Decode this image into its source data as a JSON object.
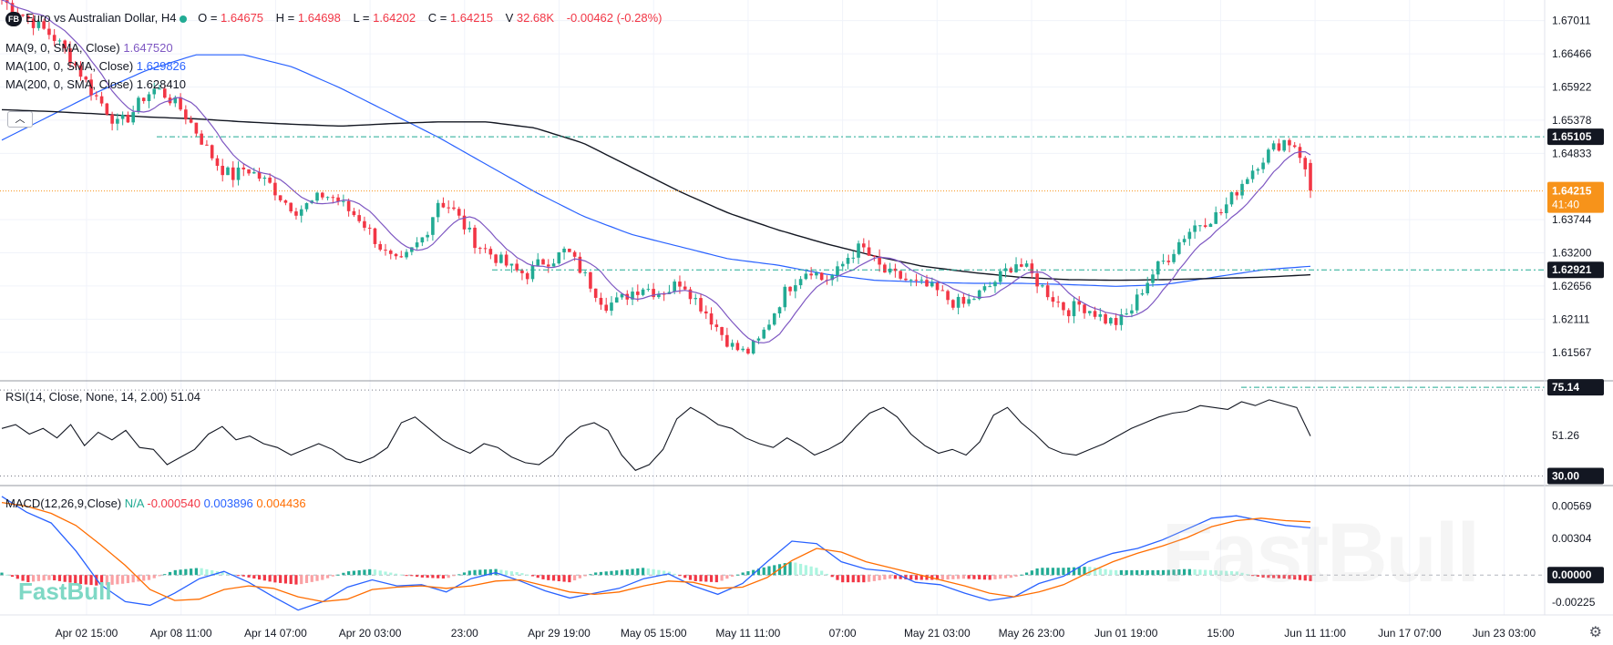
{
  "header": {
    "logo_text": "FB",
    "symbol_title": "Euro vs Australian Dollar, H4",
    "o_label": "O =",
    "o_value": "1.64675",
    "h_label": "H =",
    "h_value": "1.64698",
    "l_label": "L =",
    "l_value": "1.64202",
    "c_label": "C =",
    "c_value": "1.64215",
    "v_label": "V",
    "v_value": "32.68K",
    "change": "-0.00462 (-0.28%)"
  },
  "indicators": {
    "ma9": {
      "label": "MA(9, 0, SMA, Close)",
      "value": "1.647520",
      "color": "#7e57c2"
    },
    "ma100": {
      "label": "MA(100, 0, SMA, Close)",
      "value": "1.629826",
      "color": "#2962ff"
    },
    "ma200": {
      "label": "MA(200, 0, SMA, Close)",
      "value": "1.628410",
      "color": "#131722"
    },
    "rsi": {
      "label": "RSI(14, Close, None, 14, 2.00)",
      "value": "51.04"
    },
    "macd": {
      "label": "MACD(12,26,9,Close)",
      "na": "N/A",
      "hist": "-0.000540",
      "macd": "0.003896",
      "signal": "0.004436"
    }
  },
  "price_axis": {
    "ticks": [
      "1.67011",
      "1.66466",
      "1.65922",
      "1.65378",
      "1.64833",
      "1.63744",
      "1.63200",
      "1.62656",
      "1.62111",
      "1.61567"
    ],
    "badge_high": "1.65105",
    "badge_last": "1.64215",
    "badge_timer": "41:40",
    "badge_low": "1.62921"
  },
  "rsi_axis": {
    "ticks": [
      "51.26"
    ],
    "badge_top": "75.14",
    "badge_bottom": "30.00"
  },
  "macd_axis": {
    "ticks": [
      "0.00569",
      "0.00304",
      "-0.00225"
    ],
    "badge_zero": "0.00000"
  },
  "time_axis": [
    "Apr 02 15:00",
    "Apr 08 11:00",
    "Apr 14 07:00",
    "Apr 20 03:00",
    "23:00",
    "Apr 29 19:00",
    "May 05 15:00",
    "May 11 11:00",
    "07:00",
    "May 21 03:00",
    "May 26 23:00",
    "Jun 01 19:00",
    "15:00",
    "Jun 11 11:00",
    "Jun 17 07:00",
    "Jun 23 03:00"
  ],
  "watermark": {
    "small": "FastBull",
    "big": "FastBull"
  },
  "colors": {
    "up": "#22ab94",
    "down": "#f23645",
    "accent": "#f7931a",
    "ma100": "#2962ff",
    "ma9": "#7e57c2",
    "ma200": "#131722",
    "macd_line": "#2962ff",
    "signal_line": "#ff6d00"
  },
  "chart_data": [
    {
      "type": "candlestick",
      "title": "Euro vs Australian Dollar, H4",
      "ylim": [
        1.611,
        1.6735
      ],
      "y_ticks": [
        1.67011,
        1.66466,
        1.65922,
        1.65378,
        1.64833,
        1.63744,
        1.632,
        1.62656,
        1.62111,
        1.61567
      ],
      "x_ticks": [
        "Apr 02 15:00",
        "Apr 08 11:00",
        "Apr 14 07:00",
        "Apr 20 03:00",
        "23:00",
        "Apr 29 19:00",
        "May 05 15:00",
        "May 11 11:00",
        "07:00",
        "May 21 03:00",
        "May 26 23:00",
        "Jun 01 19:00",
        "15:00",
        "Jun 11 11:00",
        "Jun 17 07:00",
        "Jun 23 03:00"
      ],
      "close_path": [
        1.6735,
        1.672,
        1.6705,
        1.669,
        1.6675,
        1.665,
        1.662,
        1.6585,
        1.656,
        1.653,
        1.6545,
        1.6575,
        1.659,
        1.6575,
        1.6555,
        1.6525,
        1.649,
        1.646,
        1.6445,
        1.646,
        1.6445,
        1.643,
        1.6405,
        1.639,
        1.64,
        1.6415,
        1.641,
        1.639,
        1.6375,
        1.6345,
        1.6315,
        1.63,
        1.6325,
        1.635,
        1.6405,
        1.6395,
        1.6365,
        1.6335,
        1.632,
        1.6305,
        1.629,
        1.6285,
        1.6305,
        1.631,
        1.6325,
        1.6295,
        1.6265,
        1.6235,
        1.624,
        1.6255,
        1.6265,
        1.6255,
        1.626,
        1.6275,
        1.6245,
        1.622,
        1.619,
        1.6165,
        1.6155,
        1.6175,
        1.6215,
        1.6255,
        1.628,
        1.6295,
        1.6275,
        1.6285,
        1.6315,
        1.633,
        1.6305,
        1.6285,
        1.628,
        1.627,
        1.6265,
        1.6255,
        1.624,
        1.6235,
        1.625,
        1.6265,
        1.6285,
        1.6305,
        1.629,
        1.6265,
        1.6245,
        1.6225,
        1.6235,
        1.6225,
        1.621,
        1.6205,
        1.6225,
        1.6265,
        1.6295,
        1.6315,
        1.6345,
        1.6365,
        1.6375,
        1.6385,
        1.6415,
        1.6445,
        1.647,
        1.649,
        1.6505,
        1.6495,
        1.6422
      ],
      "series": [
        {
          "name": "MA(9, 0, SMA, Close)",
          "last": 1.64752
        },
        {
          "name": "MA(100, 0, SMA, Close)",
          "last": 1.629826
        },
        {
          "name": "MA(200, 0, SMA, Close)",
          "last": 1.62841
        }
      ],
      "levels": [
        1.65105,
        1.62921,
        1.64215
      ]
    },
    {
      "type": "line",
      "title": "RSI(14, Close, None, 14, 2.00)",
      "ylim": [
        25,
        80
      ],
      "bands": [
        30,
        75.14
      ],
      "values": [
        55,
        57,
        52,
        55,
        50,
        57,
        46,
        53,
        49,
        54,
        45,
        44,
        36,
        40,
        44,
        52,
        56,
        49,
        51,
        47,
        45,
        41,
        44,
        47,
        44,
        39,
        37,
        40,
        45,
        58,
        61,
        55,
        49,
        45,
        42,
        47,
        45,
        40,
        37,
        36,
        41,
        50,
        56,
        58,
        54,
        41,
        33,
        36,
        44,
        60,
        66,
        62,
        57,
        55,
        50,
        47,
        45,
        50,
        46,
        41,
        44,
        48,
        56,
        63,
        66,
        61,
        52,
        46,
        42,
        44,
        41,
        48,
        62,
        66,
        58,
        52,
        45,
        42,
        41,
        44,
        47,
        51,
        55,
        58,
        61,
        63,
        64,
        67,
        66,
        65,
        69,
        67,
        70,
        68,
        66,
        51
      ],
      "last": 51.04
    },
    {
      "type": "bar",
      "title": "MACD(12,26,9,Close)",
      "ylim": [
        -0.0033,
        0.0074
      ],
      "y_ticks": [
        0.00569,
        0.00304,
        0,
        -0.00225
      ],
      "series": [
        {
          "name": "MACD",
          "last": 0.003896,
          "values": [
            0.0065,
            0.0052,
            0.0043,
            0.002,
            -0.0008,
            -0.0022,
            -0.0025,
            -0.0015,
            -0.0003,
            0.0003,
            -0.0006,
            -0.0018,
            -0.0029,
            -0.0022,
            -0.001,
            -0.0004,
            -0.0009,
            -0.0008,
            -0.0014,
            -0.0003,
            0.0002,
            -0.0005,
            -0.0013,
            -0.0019,
            -0.0015,
            -0.0011,
            -0.0003,
            0.0001,
            -0.0009,
            -0.0016,
            -0.0007,
            0.0011,
            0.0028,
            0.0026,
            0.0011,
            0.0005,
            0.0003,
            -0.0006,
            -0.0008,
            -0.0015,
            -0.0021,
            -0.0018,
            -0.0007,
            -0.0001,
            0.0011,
            0.0018,
            0.0022,
            0.0029,
            0.0038,
            0.0047,
            0.0049,
            0.0045,
            0.0041,
            0.0039
          ]
        },
        {
          "name": "Signal",
          "last": 0.004436,
          "values": [
            0.006,
            0.0057,
            0.0051,
            0.0041,
            0.0025,
            0.0008,
            -0.0012,
            -0.0021,
            -0.002,
            -0.0012,
            -0.0009,
            -0.0011,
            -0.0018,
            -0.0022,
            -0.002,
            -0.0012,
            -0.001,
            -0.0009,
            -0.0011,
            -0.0009,
            -0.0005,
            -0.0004,
            -0.0009,
            -0.0014,
            -0.0016,
            -0.0014,
            -0.0009,
            -0.0005,
            -0.0006,
            -0.0011,
            -0.001,
            -0.0002,
            0.0012,
            0.0022,
            0.0019,
            0.0011,
            0.0006,
            0.0001,
            -0.0004,
            -0.0009,
            -0.0015,
            -0.0018,
            -0.0014,
            -0.0008,
            0.0002,
            0.0011,
            0.0018,
            0.0024,
            0.0031,
            0.004,
            0.0045,
            0.0047,
            0.0045,
            0.0044
          ]
        },
        {
          "name": "Histogram",
          "last": -0.00054,
          "values": [
            0.0002,
            -0.0006,
            -0.0004,
            -0.0007,
            -0.0009,
            -0.0007,
            -0.0004,
            0.0004,
            0.0006,
            0.0002,
            -0.0002,
            -0.0006,
            -0.0008,
            -0.0004,
            0.0003,
            0.0005,
            0.0001,
            -0.0002,
            -0.0003,
            0.0004,
            0.0005,
            0.0002,
            -0.0004,
            -0.0006,
            0.0002,
            0.0004,
            0.0006,
            0.0003,
            -0.0005,
            -0.0006,
            0.0002,
            0.0007,
            0.0011,
            0.0006,
            -0.0006,
            -0.0006,
            -0.0003,
            -0.0004,
            -0.0004,
            -0.0003,
            -0.0004,
            -0.0002,
            0.0006,
            0.0006,
            0.0007,
            0.0004,
            0.0004,
            0.0004,
            0.0005,
            0.0004,
            0.0003,
            -0.0002,
            -0.0003,
            -0.0005
          ]
        }
      ]
    }
  ]
}
